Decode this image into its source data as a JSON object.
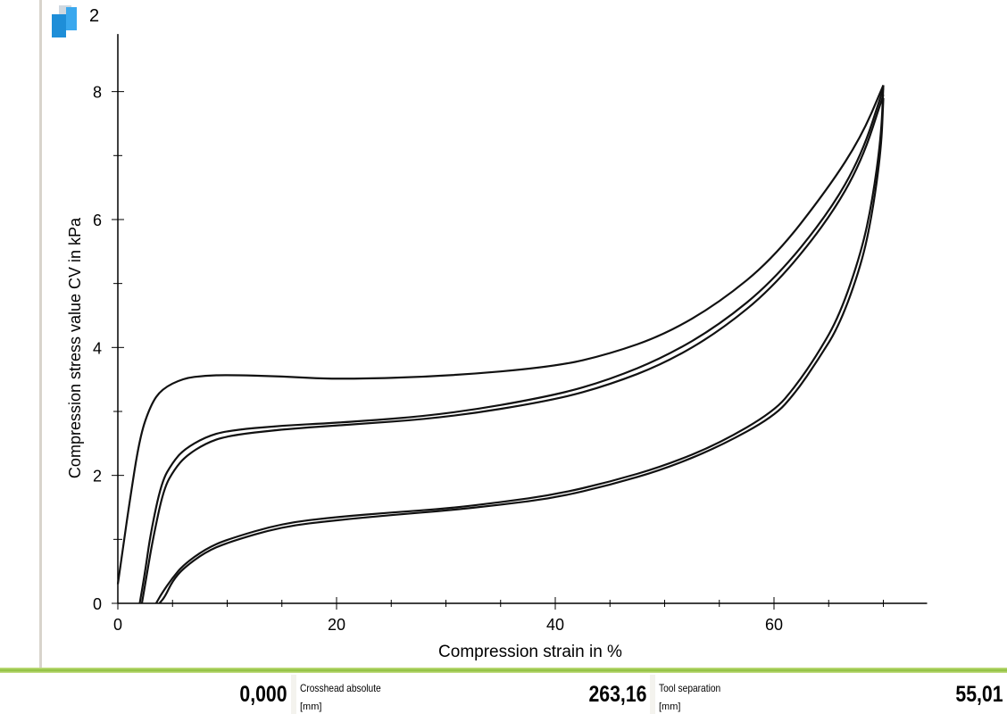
{
  "panel": {
    "number": "2",
    "icon": "blue-cube-icon"
  },
  "chart_data": {
    "type": "line",
    "xlabel": "Compression strain  in %",
    "ylabel": "Compression stress value CV  in kPa",
    "xlim": [
      0,
      74
    ],
    "ylim": [
      0,
      8.9
    ],
    "xticks": [
      0,
      20,
      40,
      60
    ],
    "yticks": [
      0,
      2,
      4,
      6,
      8
    ],
    "grid": false,
    "series": [
      {
        "x": [
          0,
          0.5,
          1,
          2,
          3,
          4,
          6,
          8,
          10,
          15,
          20,
          30,
          40,
          45,
          50,
          55,
          60,
          65,
          68,
          70
        ],
        "y": [
          0.3,
          0.9,
          1.5,
          2.6,
          3.1,
          3.35,
          3.52,
          3.56,
          3.57,
          3.55,
          3.5,
          3.55,
          3.7,
          3.9,
          4.2,
          4.7,
          5.4,
          6.5,
          7.3,
          8.1
        ]
      },
      {
        "x": [
          2,
          2.5,
          3,
          4,
          5,
          6,
          8,
          10,
          15,
          20,
          30,
          40,
          45,
          50,
          55,
          60,
          65,
          68,
          70
        ],
        "y": [
          0,
          0.5,
          1.1,
          1.9,
          2.2,
          2.4,
          2.6,
          2.7,
          2.78,
          2.82,
          2.95,
          3.25,
          3.5,
          3.85,
          4.35,
          5.05,
          6.1,
          7.0,
          8.05
        ]
      },
      {
        "x": [
          2.2,
          2.7,
          3.2,
          4.2,
          5.2,
          6.2,
          8,
          10,
          15,
          20,
          30,
          40,
          45,
          50,
          55,
          60,
          65,
          68,
          70
        ],
        "y": [
          0,
          0.5,
          1.0,
          1.8,
          2.1,
          2.3,
          2.5,
          2.62,
          2.72,
          2.78,
          2.9,
          3.18,
          3.42,
          3.75,
          4.25,
          4.95,
          6.0,
          6.9,
          7.95
        ]
      },
      {
        "x": [
          70,
          69.8,
          69,
          68,
          66,
          64,
          62,
          60,
          55,
          50,
          45,
          40,
          35,
          30,
          25,
          20,
          15,
          10,
          8,
          6,
          5,
          4,
          3.5
        ],
        "y": [
          8.1,
          7.3,
          6.3,
          5.5,
          4.5,
          3.9,
          3.4,
          3.0,
          2.5,
          2.15,
          1.9,
          1.7,
          1.58,
          1.48,
          1.42,
          1.35,
          1.25,
          1.0,
          0.85,
          0.6,
          0.4,
          0.15,
          0
        ]
      },
      {
        "x": [
          70,
          69.8,
          69,
          68,
          66,
          64,
          62,
          60,
          55,
          50,
          45,
          40,
          35,
          30,
          25,
          20,
          15,
          10,
          8,
          6,
          5,
          4.3,
          3.8
        ],
        "y": [
          7.9,
          7.1,
          6.1,
          5.3,
          4.35,
          3.8,
          3.3,
          2.92,
          2.45,
          2.1,
          1.85,
          1.65,
          1.54,
          1.45,
          1.38,
          1.3,
          1.2,
          0.95,
          0.8,
          0.55,
          0.35,
          0.1,
          0
        ]
      }
    ]
  },
  "status": [
    {
      "value": "0,000"
    },
    {
      "label": "Crosshead absolute",
      "unit": "[mm]",
      "value": "263,16"
    },
    {
      "label": "Tool separation",
      "unit": "[mm]",
      "value": "55,01"
    }
  ]
}
